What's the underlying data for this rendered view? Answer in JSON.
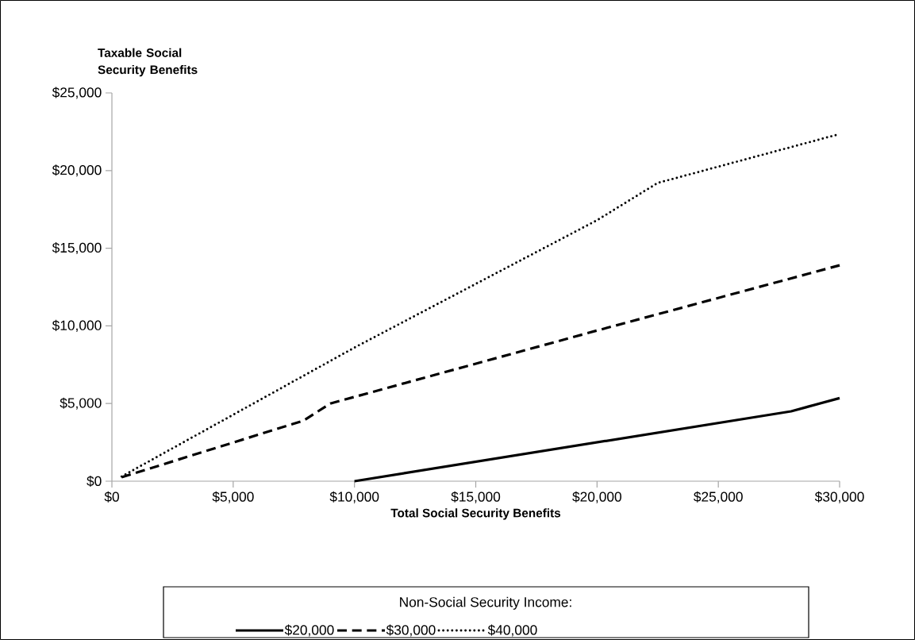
{
  "chart_data": {
    "type": "line",
    "xlabel": "Total Social Security Benefits",
    "ylabel": "Taxable Social Security Benefits",
    "legend_title": "Non-Social Security Income:",
    "series": [
      {
        "name": "$20,000",
        "color": "#000000",
        "line_style": "solid",
        "x": [
          10000,
          28000,
          30000
        ],
        "values": [
          0,
          4500,
          5350
        ]
      },
      {
        "name": "$30,000",
        "color": "#000000",
        "line_style": "dashed",
        "x": [
          400,
          7900,
          9000,
          20000,
          30000
        ],
        "values": [
          250,
          3900,
          5000,
          9700,
          13900
        ]
      },
      {
        "name": "$40,000",
        "color": "#000000",
        "line_style": "dotted",
        "x": [
          400,
          10000,
          20000,
          22500,
          30000
        ],
        "values": [
          300,
          8600,
          16800,
          19200,
          22350
        ]
      }
    ],
    "xlim": [
      0,
      30000
    ],
    "ylim": [
      0,
      25000
    ],
    "xticks": [
      {
        "value": 0,
        "label": "$0"
      },
      {
        "value": 5000,
        "label": "$5,000"
      },
      {
        "value": 10000,
        "label": "$10,000"
      },
      {
        "value": 15000,
        "label": "$15,000"
      },
      {
        "value": 20000,
        "label": "$20,000"
      },
      {
        "value": 25000,
        "label": "$25,000"
      },
      {
        "value": 30000,
        "label": "$30,000"
      }
    ],
    "yticks": [
      {
        "value": 0,
        "label": "$0"
      },
      {
        "value": 5000,
        "label": "$5,000"
      },
      {
        "value": 10000,
        "label": "$10,000"
      },
      {
        "value": 15000,
        "label": "$15,000"
      },
      {
        "value": 20000,
        "label": "$20,000"
      },
      {
        "value": 25000,
        "label": "$25,000"
      }
    ],
    "legend": "bottom",
    "grid": false
  }
}
